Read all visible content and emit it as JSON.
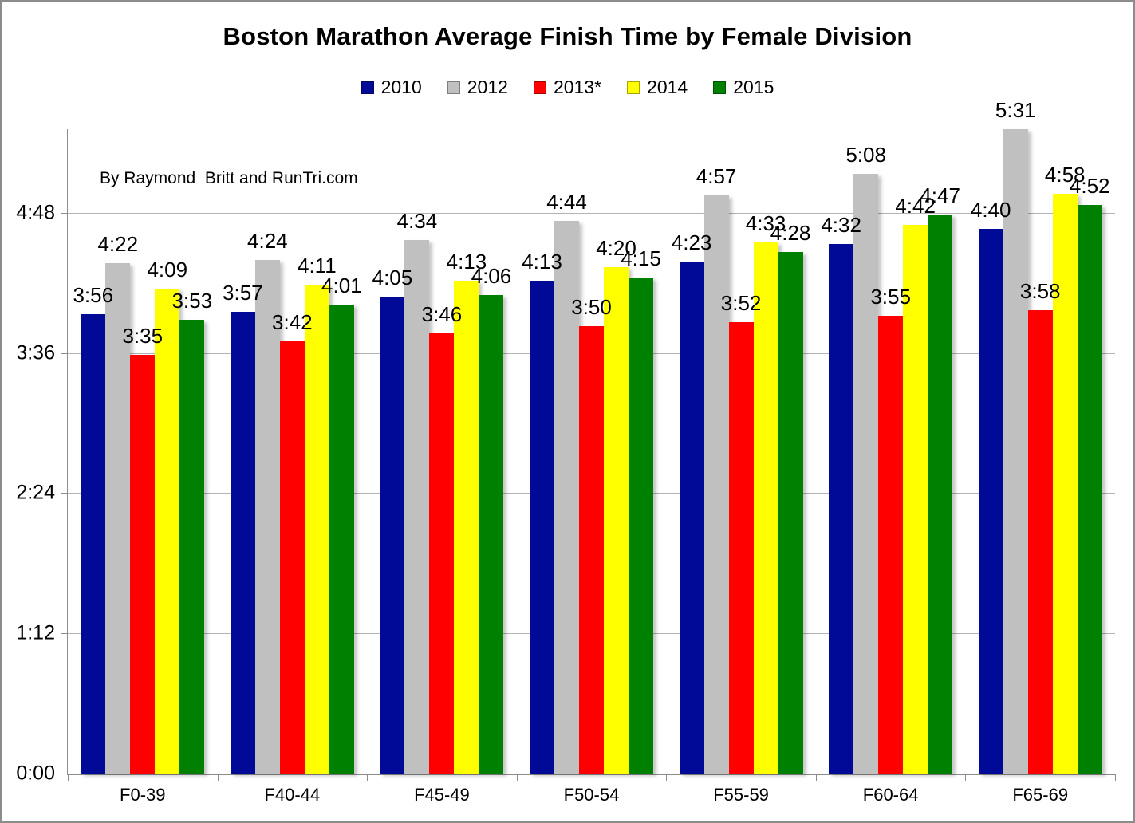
{
  "title": "Boston Marathon Average Finish Time by Female Division",
  "annotation": "By Raymond  Britt and RunTri.com",
  "chart_data": {
    "type": "bar",
    "categories": [
      "F0-39",
      "F40-44",
      "F45-49",
      "F50-54",
      "F55-59",
      "F60-64",
      "F65-69"
    ],
    "series": [
      {
        "name": "2010",
        "color": "#000A96",
        "values": [
          "3:56",
          "3:57",
          "4:05",
          "4:13",
          "4:23",
          "4:32",
          "4:40"
        ]
      },
      {
        "name": "2012",
        "color": "#C0C0C0",
        "values": [
          "4:22",
          "4:24",
          "4:34",
          "4:44",
          "4:57",
          "5:08",
          "5:31"
        ]
      },
      {
        "name": "2013*",
        "color": "#FF0000",
        "values": [
          "3:35",
          "3:42",
          "3:46",
          "3:50",
          "3:52",
          "3:55",
          "3:58"
        ]
      },
      {
        "name": "2014",
        "color": "#FFFF00",
        "values": [
          "4:09",
          "4:11",
          "4:13",
          "4:20",
          "4:33",
          "4:42",
          "4:58"
        ]
      },
      {
        "name": "2015",
        "color": "#008000",
        "values": [
          "3:53",
          "4:01",
          "4:06",
          "4:15",
          "4:28",
          "4:47",
          "4:52"
        ]
      }
    ],
    "y_ticks": [
      "0:00",
      "1:12",
      "2:24",
      "3:36",
      "4:48"
    ],
    "ylim_minutes": [
      0,
      331
    ],
    "grid": true,
    "legend_position": "top",
    "data_labels": true,
    "axis_color": "#8C8C8C",
    "gridline_color": "#B3B3B3",
    "background_color": "#FFFFFF"
  }
}
